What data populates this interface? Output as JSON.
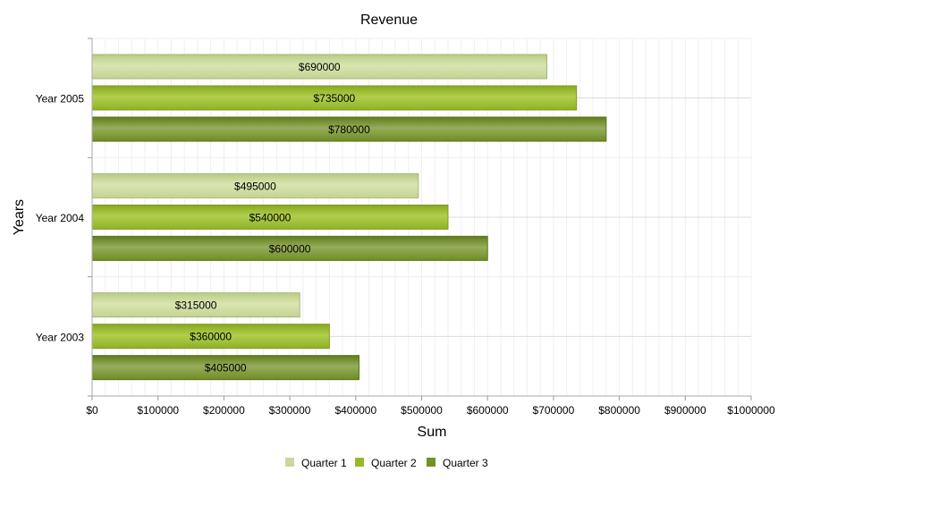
{
  "chart_data": {
    "type": "bar",
    "orientation": "horizontal",
    "title": "Revenue",
    "xlabel": "Sum",
    "ylabel": "Years",
    "categories": [
      "Year 2005",
      "Year 2004",
      "Year 2003"
    ],
    "series": [
      {
        "name": "Quarter 1",
        "color": "#c8d89a",
        "values": [
          690000,
          495000,
          315000
        ],
        "labels": [
          "$690000",
          "$495000",
          "$315000"
        ]
      },
      {
        "name": "Quarter 2",
        "color": "#96ba2a",
        "values": [
          735000,
          540000,
          360000
        ],
        "labels": [
          "$735000",
          "$540000",
          "$360000"
        ]
      },
      {
        "name": "Quarter 3",
        "color": "#739227",
        "values": [
          780000,
          600000,
          405000
        ],
        "labels": [
          "$780000",
          "$600000",
          "$405000"
        ]
      }
    ],
    "xlim": [
      0,
      1000000
    ],
    "xticks": [
      "$0",
      "$100000",
      "$200000",
      "$300000",
      "$400000",
      "$500000",
      "$600000",
      "$700000",
      "$800000",
      "$900000",
      "$1000000"
    ],
    "grid": true,
    "legend": "bottom-center"
  }
}
